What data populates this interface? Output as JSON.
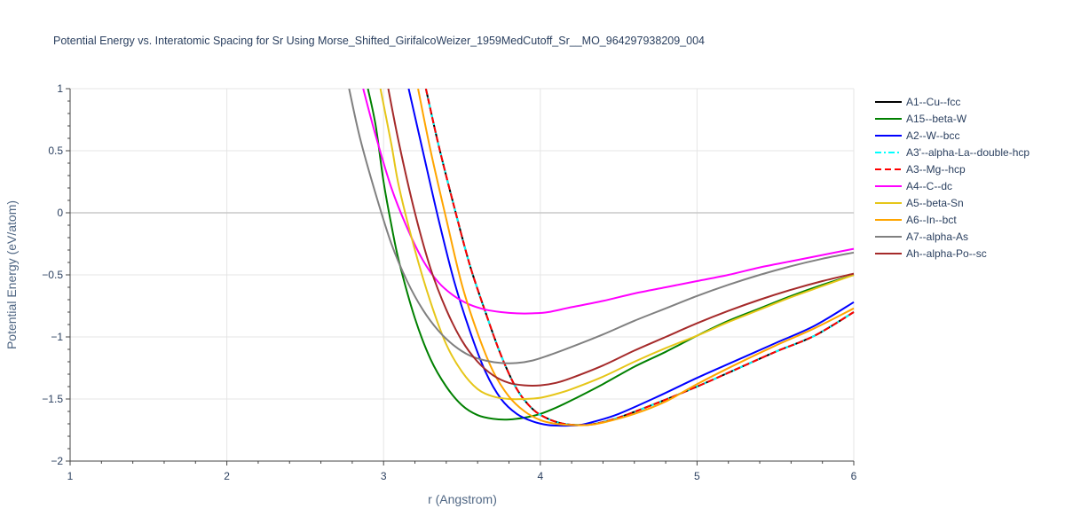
{
  "chart_data": {
    "type": "line",
    "title": "Potential Energy vs. Interatomic Spacing for Sr Using Morse_Shifted_GirifalcoWeizer_1959MedCutoff_Sr__MO_964297938209_004",
    "xlabel": "r (Angstrom)",
    "ylabel": "Potential Energy (eV/atom)",
    "xlim": [
      1,
      6
    ],
    "ylim": [
      -2,
      1
    ],
    "xticks": [
      1,
      2,
      3,
      4,
      5,
      6
    ],
    "yticks": [
      1,
      0.5,
      0,
      -0.5,
      -1,
      -1.5,
      -2
    ],
    "xtick_labels": [
      "1",
      "2",
      "3",
      "4",
      "5",
      "6"
    ],
    "ytick_labels": [
      "1",
      "0.5",
      "0",
      "−0.5",
      "−1",
      "−1.5",
      "−2"
    ],
    "grid": true,
    "legend_position": "right",
    "series": [
      {
        "name": "A1--Cu--fcc",
        "color": "#000000",
        "dash": "solid",
        "x": [
          3.27,
          3.35,
          3.45,
          3.55,
          3.65,
          3.75,
          3.85,
          3.95,
          4.05,
          4.15,
          4.25,
          4.35,
          4.5,
          4.75,
          5.0,
          5.25,
          5.5,
          5.75,
          6.0
        ],
        "y": [
          1.0,
          0.55,
          0.05,
          -0.42,
          -0.8,
          -1.15,
          -1.42,
          -1.58,
          -1.66,
          -1.7,
          -1.71,
          -1.7,
          -1.65,
          -1.53,
          -1.4,
          -1.26,
          -1.12,
          -0.99,
          -0.8
        ]
      },
      {
        "name": "A15--beta-W",
        "color": "#008000",
        "dash": "solid",
        "x": [
          2.9,
          2.95,
          3.0,
          3.05,
          3.1,
          3.2,
          3.3,
          3.4,
          3.5,
          3.6,
          3.7,
          3.8,
          3.9,
          4.0,
          4.1,
          4.2,
          4.4,
          4.6,
          4.8,
          5.0,
          5.2,
          5.4,
          5.6,
          5.8,
          6.0
        ],
        "y": [
          1.0,
          0.7,
          0.25,
          -0.1,
          -0.4,
          -0.85,
          -1.18,
          -1.4,
          -1.55,
          -1.63,
          -1.66,
          -1.665,
          -1.65,
          -1.62,
          -1.57,
          -1.51,
          -1.38,
          -1.24,
          -1.12,
          -0.99,
          -0.87,
          -0.77,
          -0.67,
          -0.58,
          -0.5
        ]
      },
      {
        "name": "A2--W--bcc",
        "color": "#0000ff",
        "dash": "solid",
        "x": [
          3.16,
          3.25,
          3.35,
          3.45,
          3.55,
          3.65,
          3.75,
          3.85,
          3.95,
          4.05,
          4.15,
          4.25,
          4.35,
          4.5,
          4.75,
          5.0,
          5.25,
          5.5,
          5.75,
          6.0
        ],
        "y": [
          1.0,
          0.5,
          -0.05,
          -0.55,
          -0.95,
          -1.28,
          -1.5,
          -1.62,
          -1.68,
          -1.71,
          -1.715,
          -1.71,
          -1.68,
          -1.62,
          -1.48,
          -1.33,
          -1.19,
          -1.05,
          -0.91,
          -0.72
        ]
      },
      {
        "name": "A3'--alpha-La--double-hcp",
        "color": "#00ffff",
        "dash": "dashdot",
        "x": [
          3.27,
          3.35,
          3.45,
          3.55,
          3.65,
          3.75,
          3.85,
          3.95,
          4.05,
          4.15,
          4.25,
          4.35,
          4.5,
          4.75,
          5.0,
          5.25,
          5.5,
          5.75,
          6.0
        ],
        "y": [
          1.0,
          0.55,
          0.05,
          -0.42,
          -0.8,
          -1.15,
          -1.42,
          -1.58,
          -1.66,
          -1.7,
          -1.71,
          -1.7,
          -1.65,
          -1.53,
          -1.4,
          -1.26,
          -1.12,
          -0.99,
          -0.8
        ]
      },
      {
        "name": "A3--Mg--hcp",
        "color": "#ff0000",
        "dash": "dash",
        "x": [
          3.27,
          3.35,
          3.45,
          3.55,
          3.65,
          3.75,
          3.85,
          3.95,
          4.05,
          4.15,
          4.25,
          4.35,
          4.5,
          4.75,
          5.0,
          5.25,
          5.5,
          5.75,
          6.0
        ],
        "y": [
          1.0,
          0.55,
          0.05,
          -0.42,
          -0.8,
          -1.15,
          -1.42,
          -1.58,
          -1.66,
          -1.7,
          -1.71,
          -1.7,
          -1.65,
          -1.53,
          -1.4,
          -1.26,
          -1.12,
          -0.99,
          -0.8
        ]
      },
      {
        "name": "A4--C--dc",
        "color": "#ff00ff",
        "dash": "solid",
        "x": [
          2.87,
          2.95,
          3.05,
          3.15,
          3.25,
          3.35,
          3.45,
          3.55,
          3.65,
          3.75,
          3.85,
          3.95,
          4.05,
          4.2,
          4.4,
          4.6,
          4.8,
          5.0,
          5.2,
          5.4,
          5.6,
          5.8,
          6.0
        ],
        "y": [
          1.0,
          0.62,
          0.2,
          -0.12,
          -0.38,
          -0.56,
          -0.67,
          -0.74,
          -0.78,
          -0.8,
          -0.81,
          -0.81,
          -0.8,
          -0.76,
          -0.71,
          -0.65,
          -0.6,
          -0.55,
          -0.5,
          -0.44,
          -0.39,
          -0.34,
          -0.29
        ]
      },
      {
        "name": "A5--beta-Sn",
        "color": "#e6c619",
        "dash": "solid",
        "x": [
          2.98,
          3.05,
          3.1,
          3.2,
          3.3,
          3.4,
          3.5,
          3.6,
          3.7,
          3.8,
          3.9,
          4.0,
          4.1,
          4.2,
          4.4,
          4.6,
          4.8,
          5.0,
          5.2,
          5.4,
          5.6,
          5.8,
          6.0
        ],
        "y": [
          1.0,
          0.55,
          0.2,
          -0.3,
          -0.72,
          -1.06,
          -1.28,
          -1.42,
          -1.48,
          -1.5,
          -1.5,
          -1.49,
          -1.46,
          -1.42,
          -1.32,
          -1.2,
          -1.09,
          -0.99,
          -0.88,
          -0.78,
          -0.68,
          -0.59,
          -0.5
        ]
      },
      {
        "name": "A6--In--bct",
        "color": "#ffa500",
        "dash": "solid",
        "x": [
          3.22,
          3.3,
          3.4,
          3.5,
          3.6,
          3.7,
          3.8,
          3.9,
          4.0,
          4.1,
          4.2,
          4.3,
          4.4,
          4.6,
          4.8,
          5.0,
          5.25,
          5.5,
          5.75,
          6.0
        ],
        "y": [
          1.0,
          0.5,
          -0.05,
          -0.58,
          -0.97,
          -1.28,
          -1.48,
          -1.6,
          -1.67,
          -1.7,
          -1.71,
          -1.71,
          -1.69,
          -1.62,
          -1.52,
          -1.38,
          -1.22,
          -1.07,
          -0.93,
          -0.77
        ]
      },
      {
        "name": "A7--alpha-As",
        "color": "#808080",
        "dash": "solid",
        "x": [
          2.78,
          2.85,
          2.95,
          3.05,
          3.15,
          3.25,
          3.35,
          3.45,
          3.55,
          3.65,
          3.75,
          3.85,
          3.95,
          4.05,
          4.2,
          4.4,
          4.6,
          4.8,
          5.0,
          5.2,
          5.4,
          5.6,
          5.8,
          6.0
        ],
        "y": [
          1.0,
          0.6,
          0.15,
          -0.25,
          -0.55,
          -0.78,
          -0.95,
          -1.07,
          -1.15,
          -1.19,
          -1.21,
          -1.21,
          -1.19,
          -1.15,
          -1.08,
          -0.98,
          -0.87,
          -0.77,
          -0.67,
          -0.58,
          -0.5,
          -0.43,
          -0.37,
          -0.32
        ]
      },
      {
        "name": "Ah--alpha-Po--sc",
        "color": "#a52a2a",
        "dash": "solid",
        "x": [
          3.03,
          3.1,
          3.2,
          3.3,
          3.4,
          3.5,
          3.6,
          3.7,
          3.8,
          3.9,
          4.0,
          4.1,
          4.2,
          4.4,
          4.6,
          4.8,
          5.0,
          5.2,
          5.4,
          5.6,
          5.8,
          6.0
        ],
        "y": [
          1.0,
          0.55,
          0.0,
          -0.45,
          -0.78,
          -1.03,
          -1.2,
          -1.31,
          -1.37,
          -1.39,
          -1.39,
          -1.37,
          -1.33,
          -1.23,
          -1.11,
          -1.0,
          -0.89,
          -0.79,
          -0.7,
          -0.62,
          -0.55,
          -0.49
        ]
      }
    ]
  }
}
